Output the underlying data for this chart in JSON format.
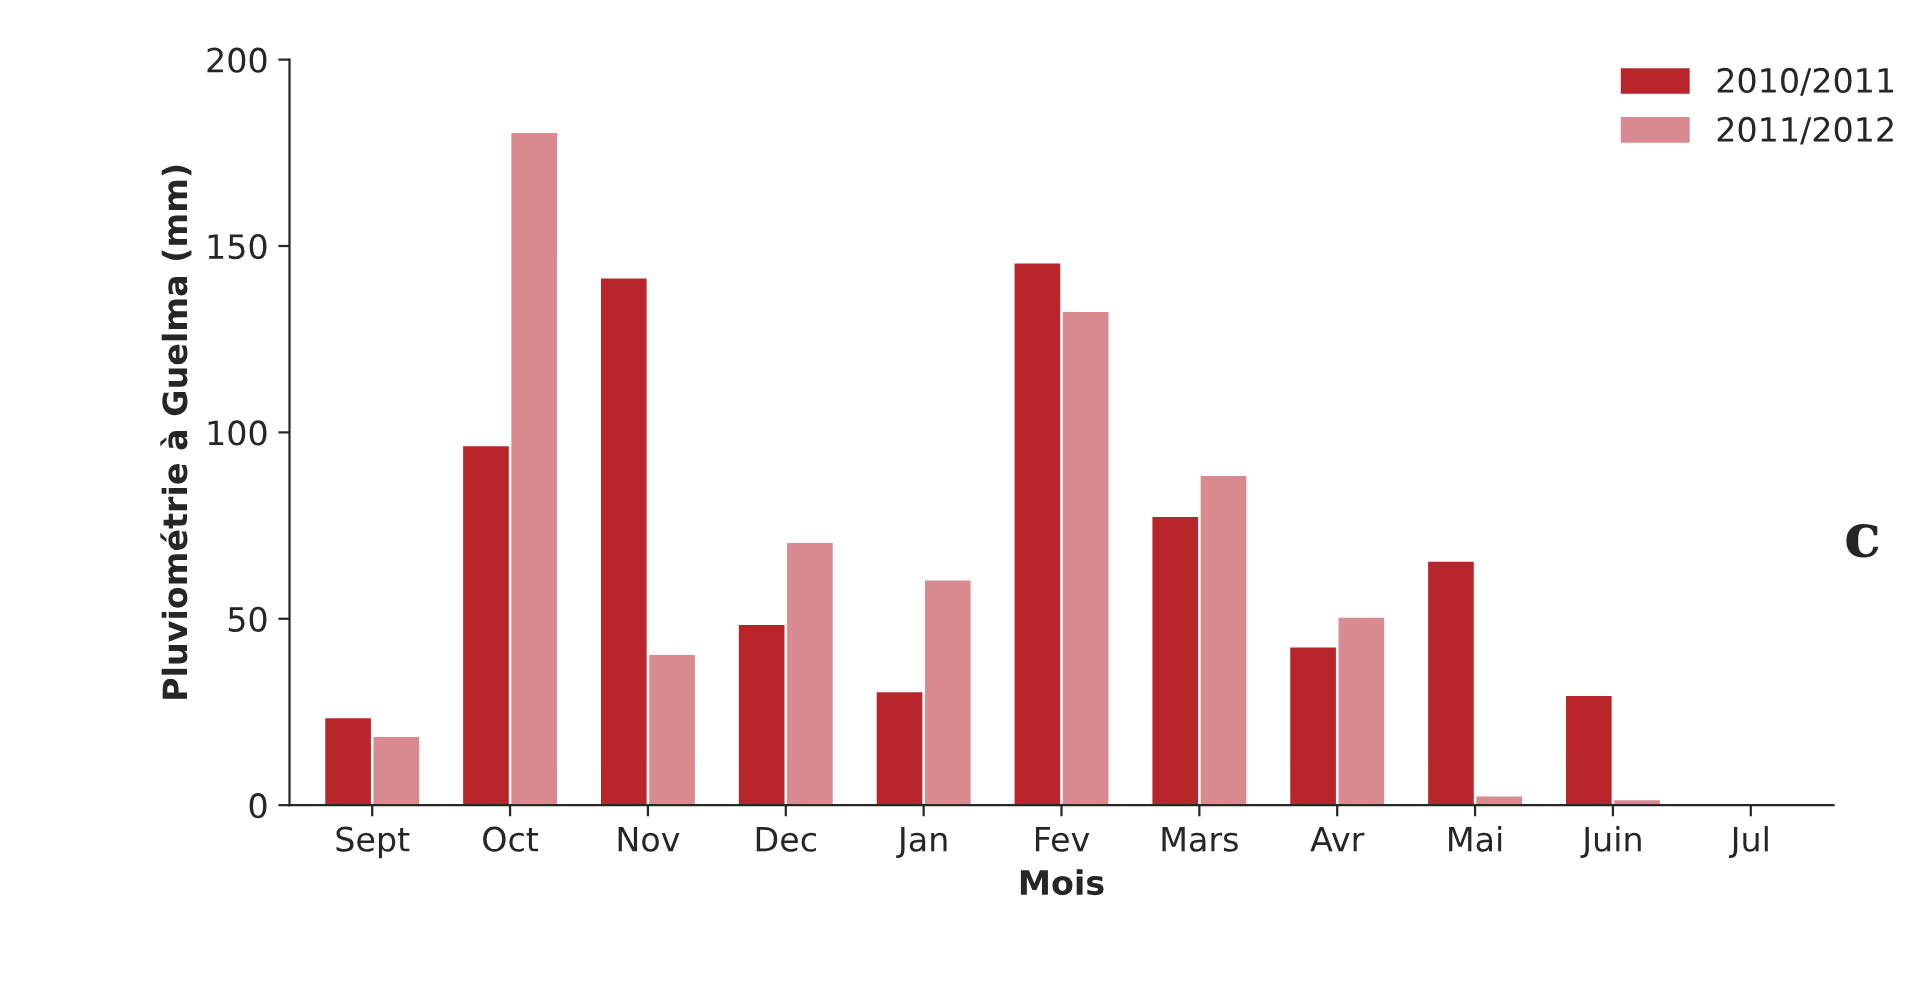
{
  "chart_data": {
    "type": "bar",
    "xlabel": "Mois",
    "ylabel": "Pluviométrie à Guelma (mm)",
    "categories": [
      "Sept",
      "Oct",
      "Nov",
      "Dec",
      "Jan",
      "Fev",
      "Mars",
      "Avr",
      "Mai",
      "Juin",
      "Jul"
    ],
    "series": [
      {
        "name": "2010/2011",
        "color": "#b8262c",
        "values": [
          23,
          96,
          141,
          48,
          30,
          145,
          77,
          42,
          65,
          29,
          0
        ]
      },
      {
        "name": "2011/2012",
        "color": "#d98a90",
        "values": [
          18,
          180,
          40,
          70,
          60,
          132,
          88,
          50,
          2,
          1,
          0
        ]
      }
    ],
    "ylim": [
      0,
      200
    ],
    "yticks": [
      0,
      50,
      100,
      150,
      200
    ],
    "grid": false,
    "legend": "top right",
    "annotations": [
      "c"
    ]
  }
}
